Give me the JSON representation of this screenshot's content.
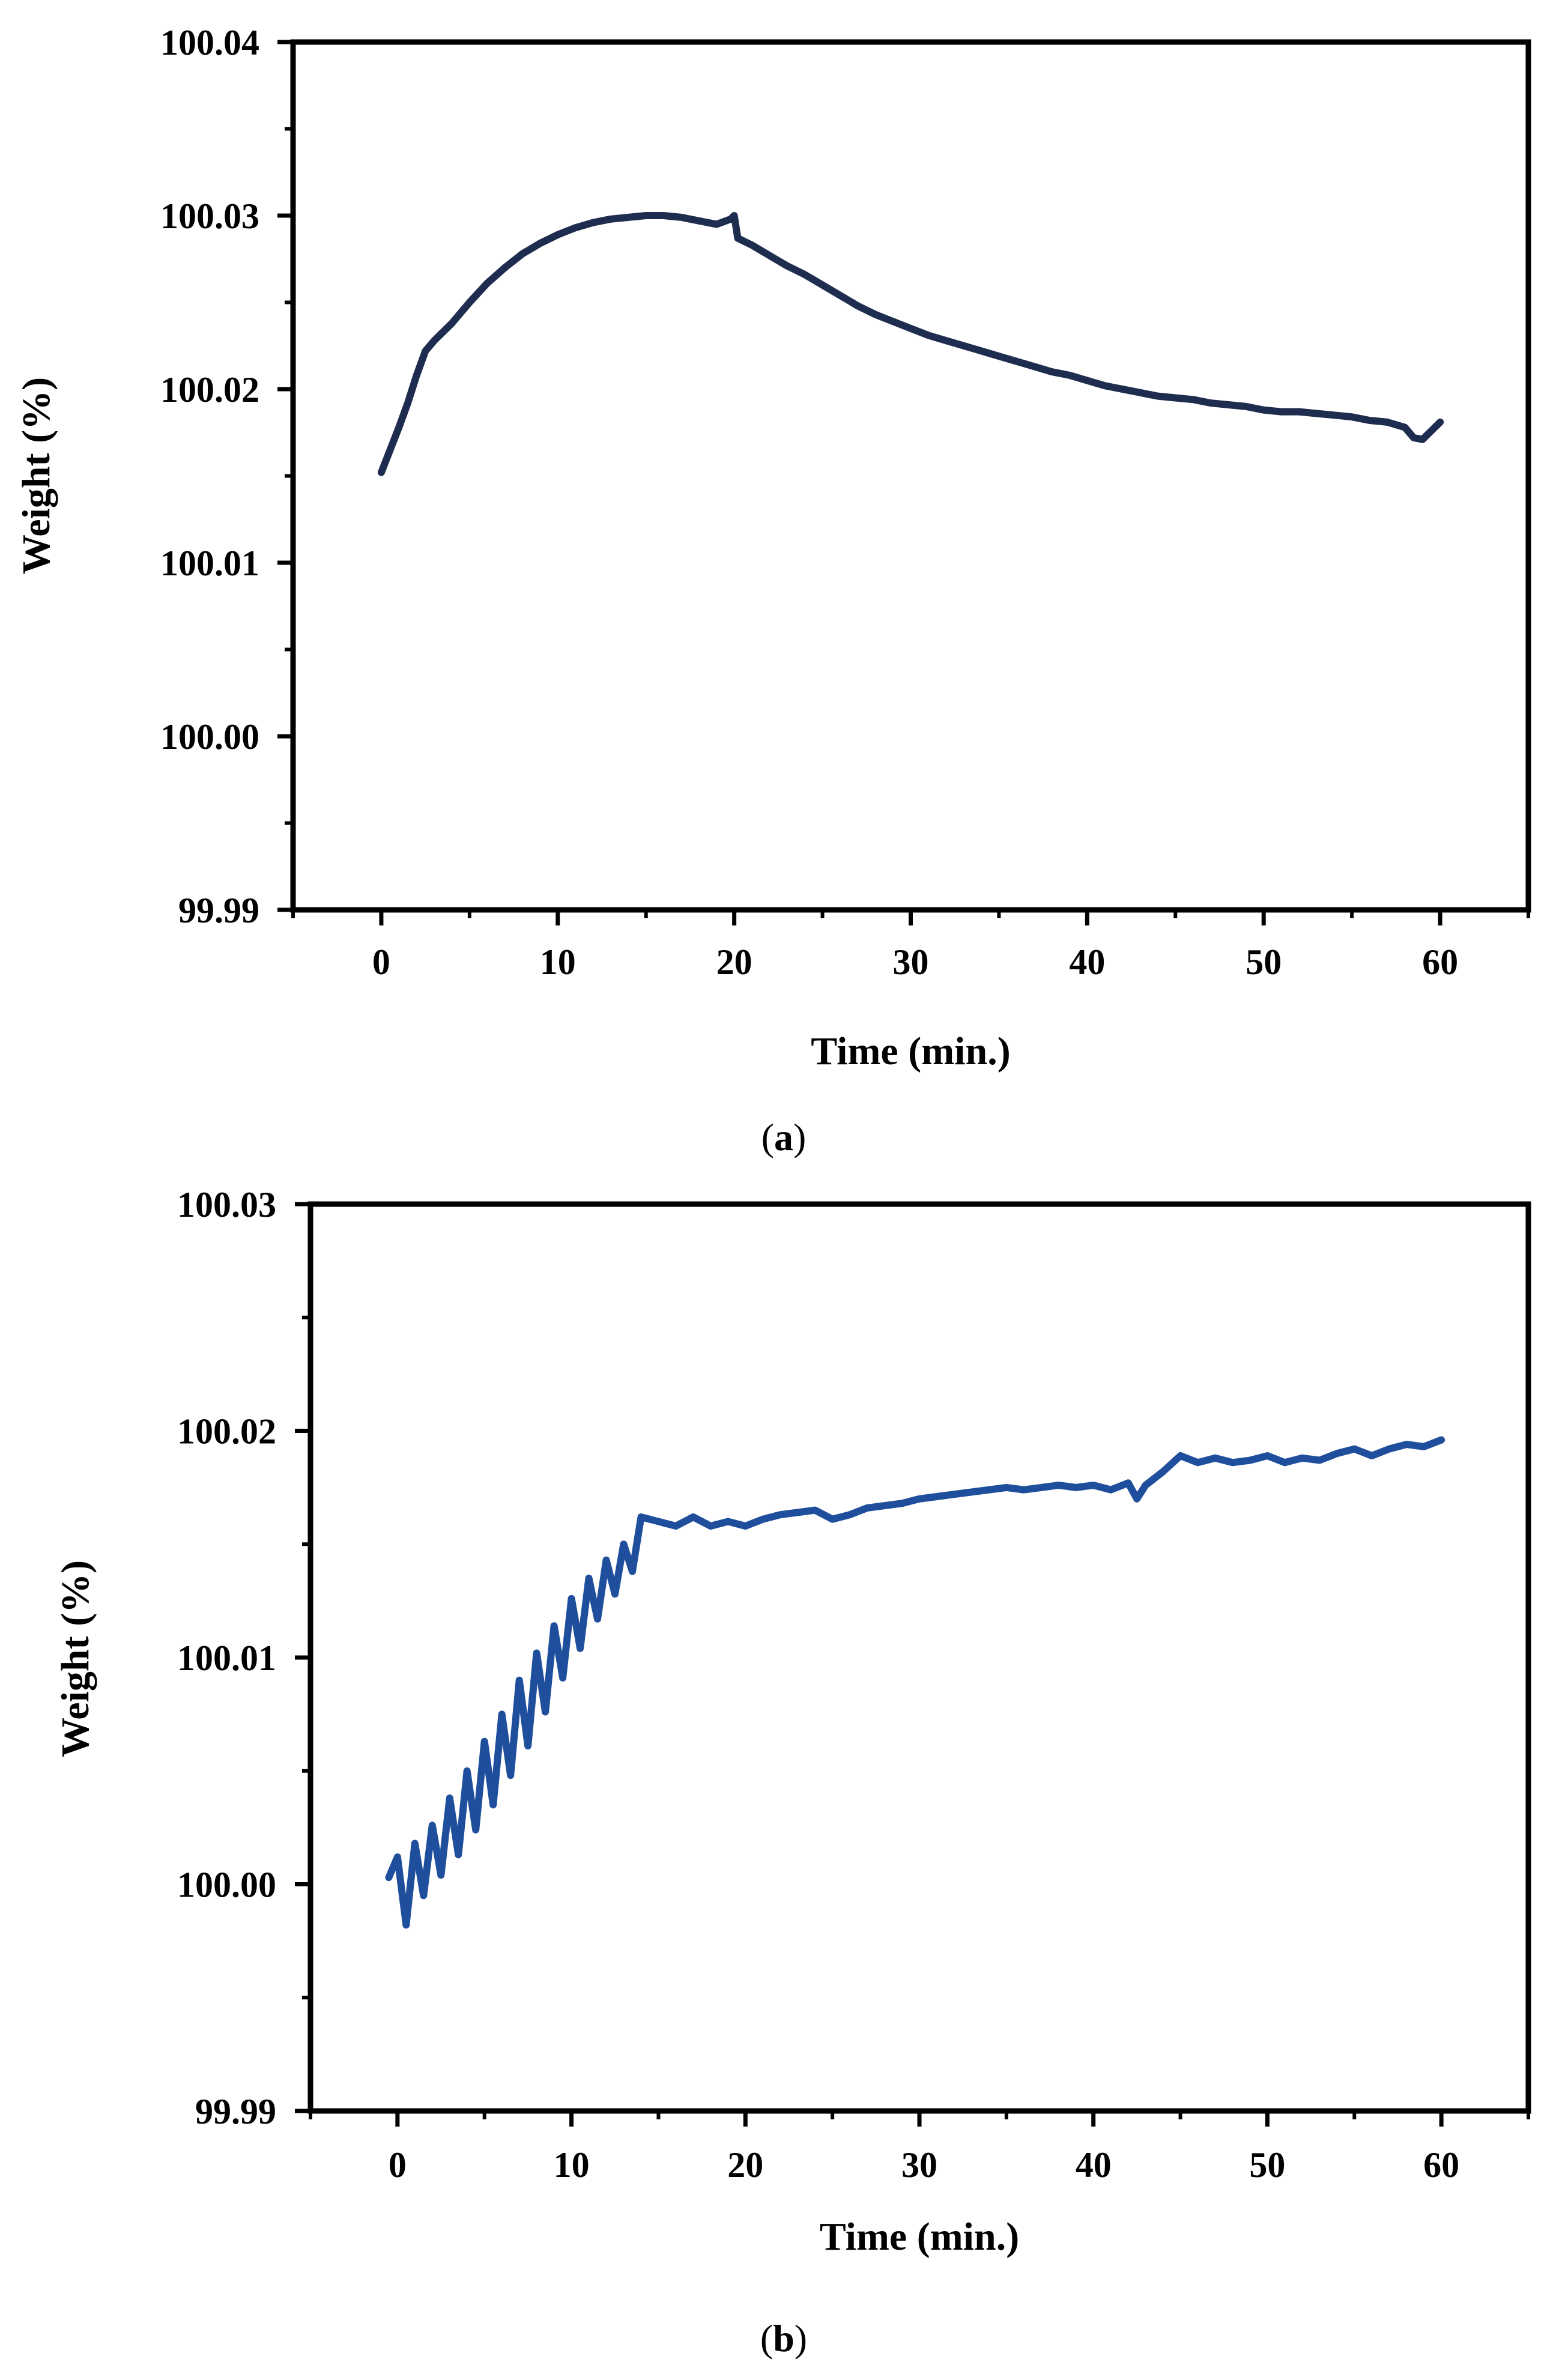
{
  "figure": {
    "panels": [
      {
        "label_open": "(",
        "label_letter": "a",
        "label_close": ")"
      },
      {
        "label_open": "(",
        "label_letter": "b",
        "label_close": ")"
      }
    ]
  },
  "chart_data": [
    {
      "type": "line",
      "title": "",
      "xlabel": "Time (min.)",
      "ylabel": "Weight (%)",
      "xlim": [
        -5,
        65
      ],
      "ylim": [
        99.99,
        100.04
      ],
      "x_ticks": [
        0,
        10,
        20,
        30,
        40,
        50,
        60
      ],
      "x_tick_labels": [
        "0",
        "10",
        "20",
        "30",
        "40",
        "50",
        "60"
      ],
      "y_ticks": [
        99.99,
        100.0,
        100.01,
        100.02,
        100.03,
        100.04
      ],
      "y_tick_labels": [
        "99.99",
        "100.00",
        "100.01",
        "100.02",
        "100.03",
        "100.04"
      ],
      "grid": false,
      "line_color": "#1e2d4f",
      "series": [
        {
          "name": "Weight",
          "x": [
            0,
            0.5,
            1,
            1.5,
            2,
            2.5,
            3,
            4,
            5,
            6,
            7,
            8,
            9,
            10,
            11,
            12,
            13,
            14,
            15,
            16,
            17,
            18,
            19,
            19.8,
            20,
            20.2,
            21,
            22,
            23,
            24,
            25,
            26,
            27,
            28,
            29,
            30,
            31,
            32,
            33,
            34,
            35,
            36,
            37,
            38,
            39,
            40,
            41,
            42,
            43,
            44,
            45,
            46,
            47,
            48,
            49,
            50,
            51,
            52,
            53,
            54,
            55,
            56,
            57,
            58,
            58.5,
            59,
            59.5,
            60
          ],
          "values": [
            100.0152,
            100.0165,
            100.0178,
            100.0192,
            100.0208,
            100.0222,
            100.0228,
            100.0238,
            100.025,
            100.0261,
            100.027,
            100.0278,
            100.0284,
            100.0289,
            100.0293,
            100.0296,
            100.0298,
            100.0299,
            100.03,
            100.03,
            100.0299,
            100.0297,
            100.0295,
            100.0298,
            100.03,
            100.0287,
            100.0283,
            100.0277,
            100.0271,
            100.0266,
            100.026,
            100.0254,
            100.0248,
            100.0243,
            100.0239,
            100.0235,
            100.0231,
            100.0228,
            100.0225,
            100.0222,
            100.0219,
            100.0216,
            100.0213,
            100.021,
            100.0208,
            100.0205,
            100.0202,
            100.02,
            100.0198,
            100.0196,
            100.0195,
            100.0194,
            100.0192,
            100.0191,
            100.019,
            100.0188,
            100.0187,
            100.0187,
            100.0186,
            100.0185,
            100.0184,
            100.0182,
            100.0181,
            100.0178,
            100.0172,
            100.0171,
            100.0176,
            100.0181
          ]
        }
      ]
    },
    {
      "type": "line",
      "title": "",
      "xlabel": "Time (min.)",
      "ylabel": "Weight (%)",
      "xlim": [
        -5,
        65
      ],
      "ylim": [
        99.99,
        100.03
      ],
      "x_ticks": [
        0,
        10,
        20,
        30,
        40,
        50,
        60
      ],
      "x_tick_labels": [
        "0",
        "10",
        "20",
        "30",
        "40",
        "50",
        "60"
      ],
      "y_ticks": [
        99.99,
        100.0,
        100.01,
        100.02,
        100.03
      ],
      "y_tick_labels": [
        "99.99",
        "100.00",
        "100.01",
        "100.02",
        "100.03"
      ],
      "grid": false,
      "line_color": "#1f4f9c",
      "series": [
        {
          "name": "Weight",
          "x": [
            -0.5,
            0,
            0.5,
            1,
            1.5,
            2,
            2.5,
            3,
            3.5,
            4,
            4.5,
            5,
            5.5,
            6,
            6.5,
            7,
            7.5,
            8,
            8.5,
            9,
            9.5,
            10,
            10.5,
            11,
            11.5,
            12,
            12.5,
            13,
            13.5,
            14,
            15,
            16,
            17,
            18,
            19,
            20,
            21,
            22,
            23,
            24,
            25,
            26,
            27,
            28,
            29,
            30,
            31,
            32,
            33,
            34,
            35,
            36,
            37,
            38,
            39,
            40,
            41,
            42,
            42.5,
            43,
            44,
            45,
            46,
            47,
            48,
            49,
            50,
            51,
            52,
            53,
            54,
            55,
            56,
            57,
            58,
            59,
            60
          ],
          "values": [
            100.0003,
            100.0012,
            99.9982,
            100.0018,
            99.9995,
            100.0026,
            100.0004,
            100.0038,
            100.0013,
            100.005,
            100.0024,
            100.0063,
            100.0035,
            100.0075,
            100.0048,
            100.009,
            100.0061,
            100.0102,
            100.0076,
            100.0114,
            100.0091,
            100.0126,
            100.0104,
            100.0135,
            100.0117,
            100.0143,
            100.0128,
            100.015,
            100.0138,
            100.0162,
            100.016,
            100.0158,
            100.0162,
            100.0158,
            100.016,
            100.0158,
            100.0161,
            100.0163,
            100.0164,
            100.0165,
            100.0161,
            100.0163,
            100.0166,
            100.0167,
            100.0168,
            100.017,
            100.0171,
            100.0172,
            100.0173,
            100.0174,
            100.0175,
            100.0174,
            100.0175,
            100.0176,
            100.0175,
            100.0176,
            100.0174,
            100.0177,
            100.017,
            100.0176,
            100.0182,
            100.0189,
            100.0186,
            100.0188,
            100.0186,
            100.0187,
            100.0189,
            100.0186,
            100.0188,
            100.0187,
            100.019,
            100.0192,
            100.0189,
            100.0192,
            100.0194,
            100.0193,
            100.0196
          ]
        }
      ]
    }
  ]
}
